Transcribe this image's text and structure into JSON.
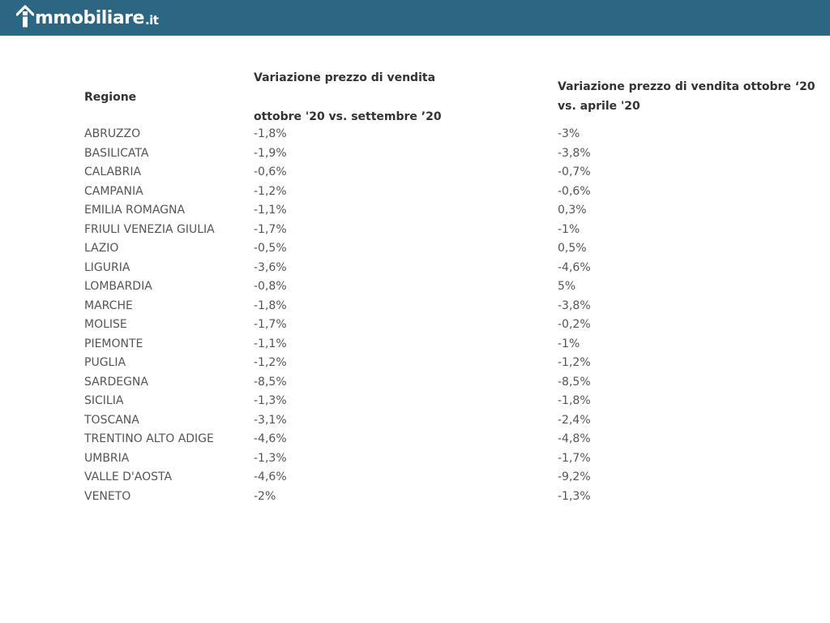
{
  "header": {
    "logo_main": "mmobiliare",
    "logo_suffix": ".it"
  },
  "table": {
    "headers": {
      "region": "Regione",
      "m1_line1": "Variazione prezzo di vendita",
      "m1_line2": "ottobre '20 vs. settembre ’20",
      "m2_line1": "Variazione prezzo di vendita ottobre ‘20",
      "m2_line2": "vs. aprile '20"
    },
    "rows": [
      {
        "region": "ABRUZZO",
        "m1": "-1,8%",
        "m2": "-3%"
      },
      {
        "region": "BASILICATA",
        "m1": "-1,9%",
        "m2": "-3,8%"
      },
      {
        "region": "CALABRIA",
        "m1": "-0,6%",
        "m2": "-0,7%"
      },
      {
        "region": "CAMPANIA",
        "m1": "-1,2%",
        "m2": "-0,6%"
      },
      {
        "region": "EMILIA ROMAGNA",
        "m1": "-1,1%",
        "m2": "0,3%"
      },
      {
        "region": "FRIULI VENEZIA GIULIA",
        "m1": "-1,7%",
        "m2": "-1%"
      },
      {
        "region": "LAZIO",
        "m1": "-0,5%",
        "m2": "0,5%"
      },
      {
        "region": "LIGURIA",
        "m1": "-3,6%",
        "m2": "-4,6%"
      },
      {
        "region": "LOMBARDIA",
        "m1": "-0,8%",
        "m2": "5%"
      },
      {
        "region": "MARCHE",
        "m1": "-1,8%",
        "m2": "-3,8%"
      },
      {
        "region": "MOLISE",
        "m1": "-1,7%",
        "m2": "-0,2%"
      },
      {
        "region": "PIEMONTE",
        "m1": "-1,1%",
        "m2": "-1%"
      },
      {
        "region": "PUGLIA",
        "m1": "-1,2%",
        "m2": "-1,2%"
      },
      {
        "region": "SARDEGNA",
        "m1": "-8,5%",
        "m2": "-8,5%"
      },
      {
        "region": "SICILIA",
        "m1": "-1,3%",
        "m2": "-1,8%"
      },
      {
        "region": "TOSCANA",
        "m1": "-3,1%",
        "m2": "-2,4%"
      },
      {
        "region": "TRENTINO ALTO ADIGE",
        "m1": "-4,6%",
        "m2": "-4,8%"
      },
      {
        "region": "UMBRIA",
        "m1": "-1,3%",
        "m2": "-1,7%"
      },
      {
        "region": "VALLE D'AOSTA",
        "m1": "-4,6%",
        "m2": "-9,2%"
      },
      {
        "region": "VENETO",
        "m1": "-2%",
        "m2": "-1,3%"
      }
    ]
  },
  "colors": {
    "header_bg": "#2b6683",
    "header_text": "#ffffff",
    "heading_text": "#333333",
    "cell_text": "#555555"
  }
}
